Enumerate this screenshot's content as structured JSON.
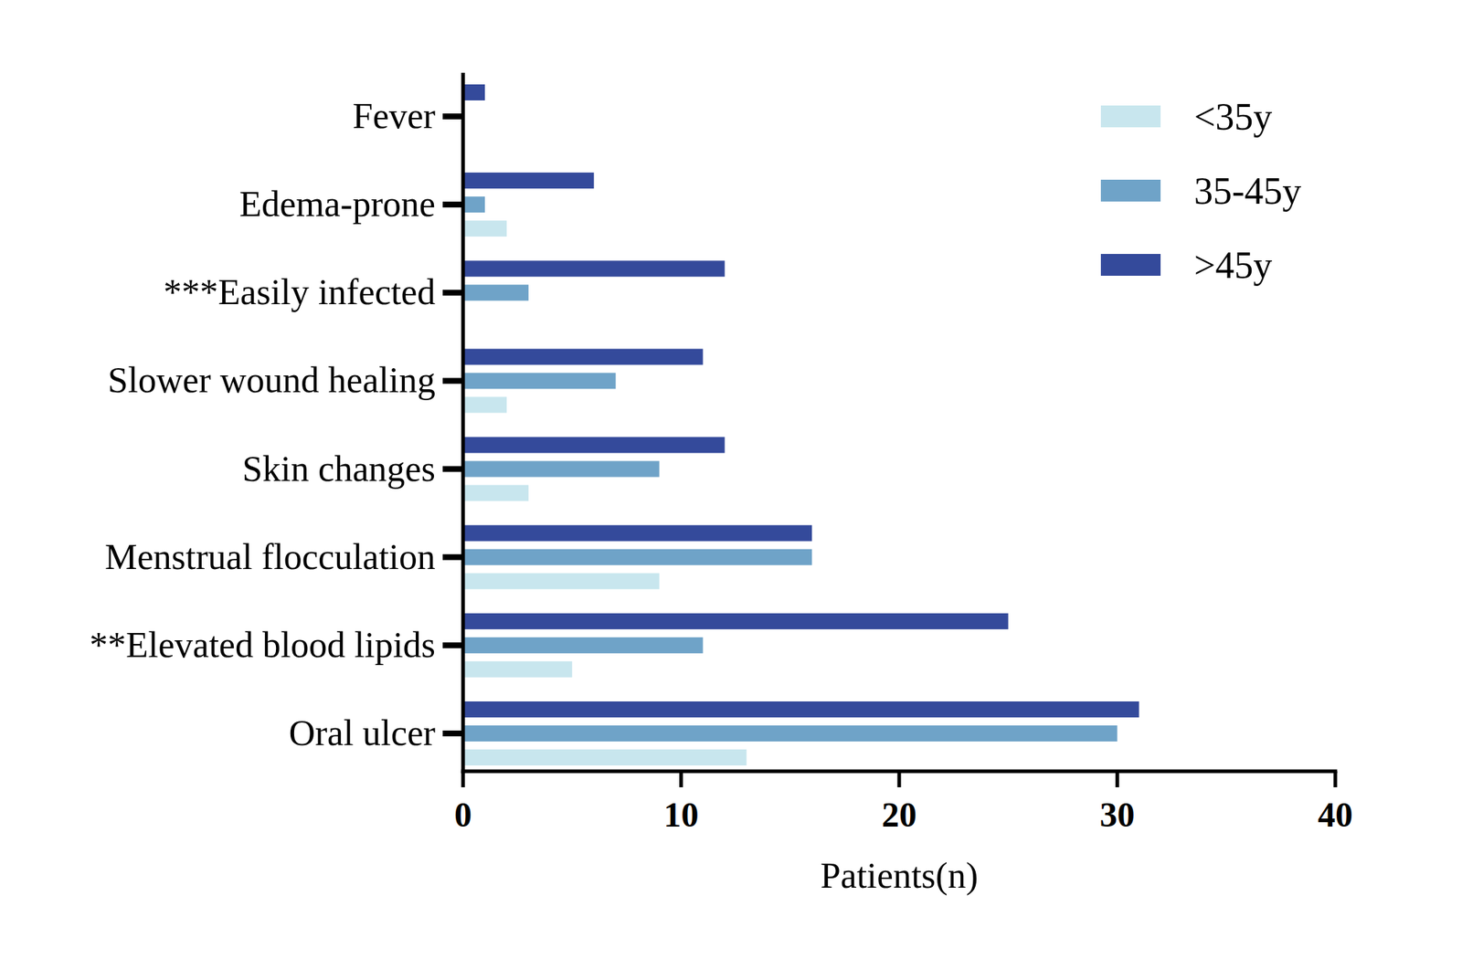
{
  "chart_data": {
    "type": "bar",
    "orientation": "horizontal",
    "categories": [
      "Fever",
      "Edema-prone",
      "***Easily infected",
      "Slower wound healing",
      "Skin changes",
      "Menstrual flocculation",
      "**Elevated blood lipids",
      "Oral ulcer"
    ],
    "series": [
      {
        "name": "<35y",
        "color": "#c8e6ee",
        "values": [
          0,
          2,
          0,
          2,
          3,
          9,
          5,
          13
        ]
      },
      {
        "name": "35-45y",
        "color": "#6fa3c8",
        "values": [
          0,
          1,
          3,
          7,
          9,
          16,
          11,
          30
        ]
      },
      {
        "name": ">45y",
        "color": "#344a9b",
        "values": [
          1,
          6,
          12,
          11,
          12,
          16,
          25,
          31
        ]
      }
    ],
    "x_label": "Patients(n)",
    "xlim": [
      0,
      40
    ],
    "xticks": [
      0,
      10,
      20,
      30,
      40
    ],
    "grid": false,
    "legend": "top-right"
  }
}
